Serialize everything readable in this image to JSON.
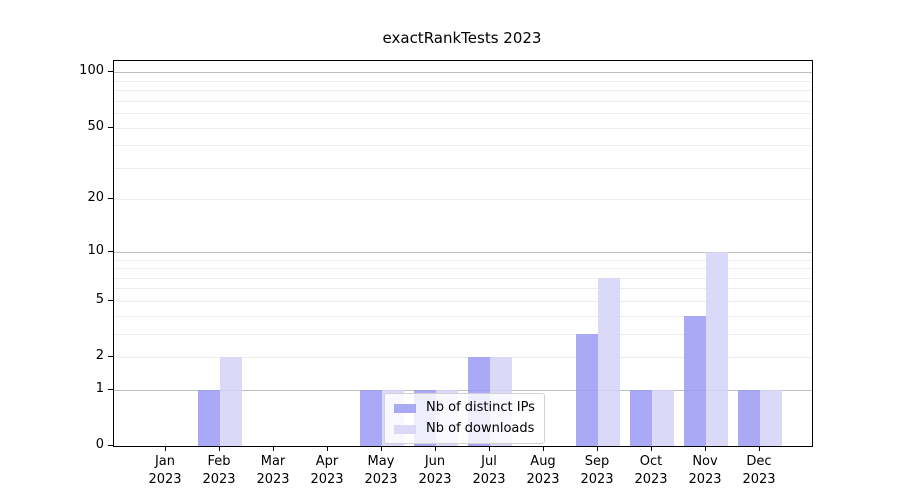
{
  "title": "exactRankTests 2023",
  "year": "2023",
  "colors": {
    "distinct_ips_bar": "#9d9df5",
    "downloads_bar": "#d5d5f7",
    "major_gridline": "#c7c7c7",
    "minor_gridline": "#ececec",
    "axis": "#000000",
    "legend_border": "#d2d2d2"
  },
  "legend": {
    "items": [
      {
        "label": "Nb of distinct IPs",
        "color": "#9d9df5"
      },
      {
        "label": "Nb of downloads",
        "color": "#d5d5f7"
      }
    ]
  },
  "chart_data": {
    "type": "bar",
    "title": "exactRankTests 2023",
    "categories": [
      "Jan 2023",
      "Feb 2023",
      "Mar 2023",
      "Apr 2023",
      "May 2023",
      "Jun 2023",
      "Jul 2023",
      "Aug 2023",
      "Sep 2023",
      "Oct 2023",
      "Nov 2023",
      "Dec 2023"
    ],
    "x_tick_line1": [
      "Jan",
      "Feb",
      "Mar",
      "Apr",
      "May",
      "Jun",
      "Jul",
      "Aug",
      "Sep",
      "Oct",
      "Nov",
      "Dec"
    ],
    "x_tick_line2": [
      "2023",
      "2023",
      "2023",
      "2023",
      "2023",
      "2023",
      "2023",
      "2023",
      "2023",
      "2023",
      "2023",
      "2023"
    ],
    "series": [
      {
        "name": "Nb of distinct IPs",
        "color": "#9d9df5",
        "values": [
          0,
          1,
          0,
          0,
          1,
          1,
          2,
          0,
          3,
          1,
          4,
          1
        ]
      },
      {
        "name": "Nb of downloads",
        "color": "#d5d5f7",
        "values": [
          0,
          2,
          0,
          0,
          1,
          1,
          2,
          0,
          7,
          1,
          10,
          1
        ]
      }
    ],
    "xlabel": "",
    "ylabel": "",
    "yscale": "log1p",
    "ylim": [
      0,
      115
    ],
    "yticks": [
      0,
      1,
      2,
      5,
      10,
      20,
      50,
      100
    ],
    "major_gridlines": [
      1,
      10,
      100
    ],
    "minor_gridlines": [
      2,
      3,
      4,
      5,
      6,
      7,
      8,
      9,
      20,
      30,
      40,
      50,
      60,
      70,
      80,
      90
    ],
    "grid": "on, drawn over bars",
    "legend_position": "lower center (inside axes)"
  }
}
